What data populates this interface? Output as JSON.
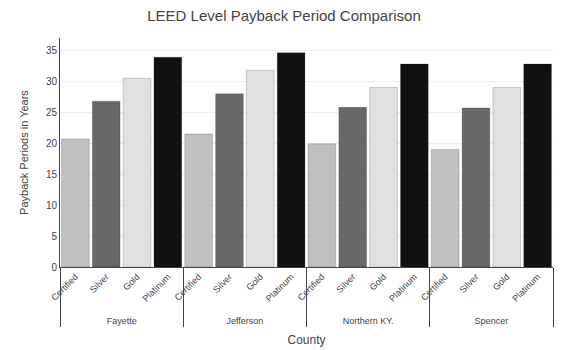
{
  "chart_data": {
    "type": "bar",
    "title": "LEED Level Payback Period Comparison",
    "xlabel": "County",
    "ylabel": "Payback Periods in Years",
    "categories": [
      "Fayette",
      "Jefferson",
      "Northern KY.",
      "Spencer"
    ],
    "series": [
      {
        "name": "Certified",
        "color": "#c0c0c0",
        "values": [
          20.7,
          21.5,
          19.9,
          19.0
        ]
      },
      {
        "name": "Silver",
        "color": "#686868",
        "values": [
          26.8,
          28.0,
          25.8,
          25.7
        ]
      },
      {
        "name": "Gold",
        "color": "#e0e0e0",
        "values": [
          30.5,
          31.8,
          29.0,
          29.0
        ]
      },
      {
        "name": "Platinum",
        "color": "#111111",
        "values": [
          33.9,
          34.6,
          32.8,
          32.8
        ]
      }
    ],
    "ylim": [
      0,
      37
    ],
    "yticks": [
      0,
      5,
      10,
      15,
      20,
      25,
      30,
      35
    ],
    "grid": true
  }
}
